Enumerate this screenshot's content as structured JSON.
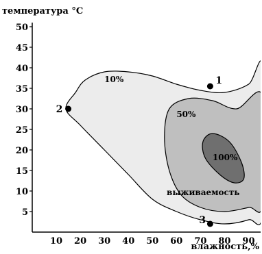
{
  "chart_data": {
    "type": "contour",
    "ylabel": "температура °С",
    "xlabel": "влажность,%",
    "xlim": [
      0,
      95
    ],
    "ylim": [
      0,
      51
    ],
    "x_ticks": [
      10,
      20,
      30,
      40,
      50,
      60,
      70,
      80,
      90
    ],
    "y_ticks": [
      5,
      10,
      15,
      20,
      25,
      30,
      35,
      40,
      45,
      50
    ],
    "region_label": "выживаемость",
    "zones": [
      {
        "label": "10%",
        "color": "#ececec",
        "label_at": [
          30,
          36.5
        ],
        "outline": [
          [
            14,
            30
          ],
          [
            18,
            34
          ],
          [
            22,
            37
          ],
          [
            30,
            39
          ],
          [
            40,
            39
          ],
          [
            50,
            38
          ],
          [
            60,
            36
          ],
          [
            70,
            34.5
          ],
          [
            80,
            34
          ],
          [
            90,
            36
          ],
          [
            96,
            40
          ],
          [
            96,
            5
          ],
          [
            90,
            3
          ],
          [
            80,
            2
          ],
          [
            70,
            3
          ],
          [
            60,
            5
          ],
          [
            50,
            8
          ],
          [
            40,
            14
          ],
          [
            30,
            20
          ],
          [
            20,
            26
          ]
        ]
      },
      {
        "label": "50%",
        "color": "#bfbfbf",
        "label_at": [
          60,
          28
        ],
        "outline": [
          [
            57,
            30
          ],
          [
            65,
            32.5
          ],
          [
            75,
            32
          ],
          [
            85,
            30
          ],
          [
            96,
            33
          ],
          [
            96,
            7
          ],
          [
            90,
            6
          ],
          [
            80,
            5
          ],
          [
            70,
            6
          ],
          [
            62,
            9
          ],
          [
            57,
            15
          ],
          [
            55,
            23
          ]
        ]
      },
      {
        "label": "100%",
        "color": "#6f6f6f",
        "label_at": [
          75,
          17.5
        ],
        "outline": [
          [
            75,
            24
          ],
          [
            82,
            22
          ],
          [
            87,
            17
          ],
          [
            88,
            13
          ],
          [
            84,
            12
          ],
          [
            78,
            14
          ],
          [
            72,
            18
          ],
          [
            71,
            22
          ]
        ]
      }
    ],
    "points": [
      {
        "label": "1",
        "x": 74,
        "y": 35.5
      },
      {
        "label": "2",
        "x": 15,
        "y": 30
      },
      {
        "label": "3",
        "x": 74,
        "y": 2
      }
    ]
  }
}
